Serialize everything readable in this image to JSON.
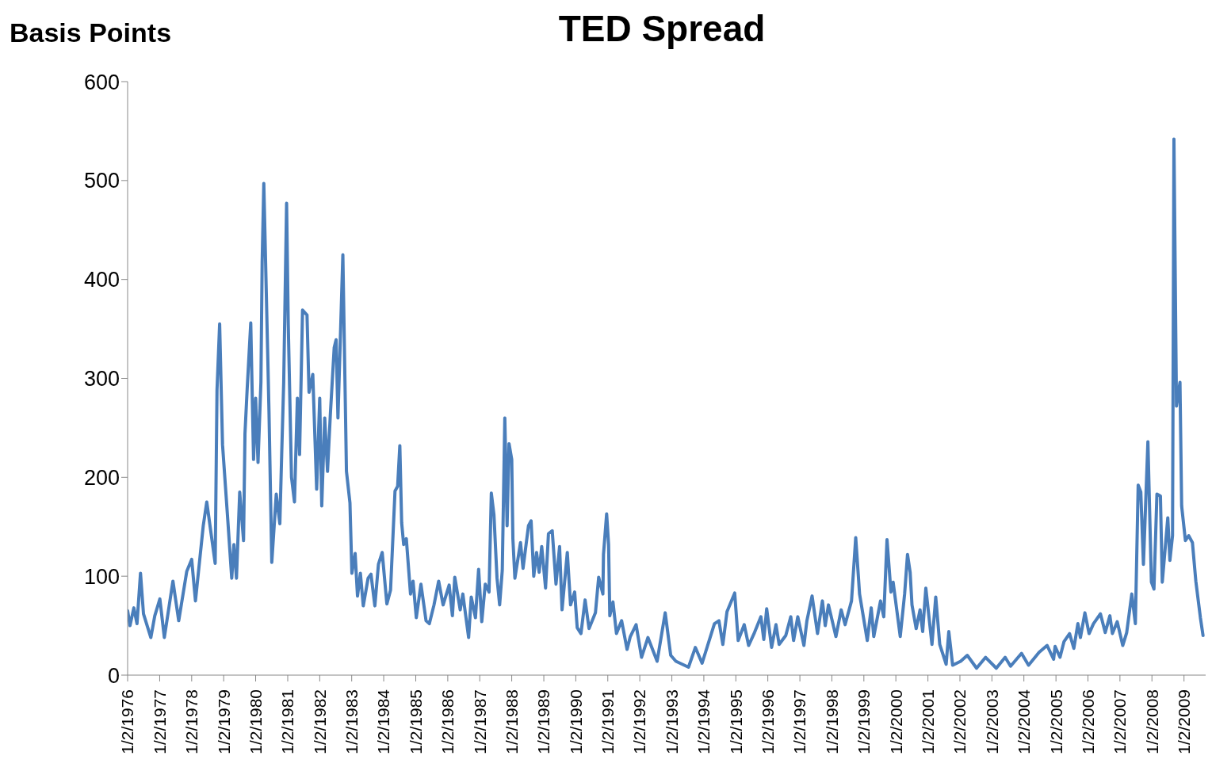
{
  "chart_data": {
    "type": "line",
    "title": "TED Spread",
    "ylabel": "Basis Points",
    "color": "#4a7ebb",
    "line_style": "solid",
    "x": [
      "1976-01-02",
      "1976-01-29",
      "1976-03-13",
      "1976-04-18",
      "1976-05-28",
      "1976-07-01",
      "1976-09-23",
      "1976-11-07",
      "1977-01-04",
      "1977-02-24",
      "1977-06-02",
      "1977-08-07",
      "1977-11-07",
      "1978-01-02",
      "1978-02-14",
      "1978-05-14",
      "1978-06-23",
      "1978-09-27",
      "1978-10-18",
      "1978-11-17",
      "1978-12-20",
      "1979-02-14",
      "1979-04-04",
      "1979-04-29",
      "1979-05-28",
      "1979-07-04",
      "1979-08-17",
      "1979-09-02",
      "1979-09-27",
      "1979-11-07",
      "1979-12-09",
      "1980-01-02",
      "1980-01-29",
      "1980-03-02",
      "1980-03-16",
      "1980-04-04",
      "1980-05-17",
      "1980-06-02",
      "1980-07-04",
      "1980-08-24",
      "1980-10-04",
      "1980-10-25",
      "1980-11-17",
      "1980-12-20",
      "1981-01-08",
      "1981-02-14",
      "1981-03-20",
      "1981-04-22",
      "1981-05-17",
      "1981-06-20",
      "1981-08-10",
      "1981-09-02",
      "1981-10-15",
      "1981-11-28",
      "1982-01-02",
      "1982-01-25",
      "1982-02-28",
      "1982-04-01",
      "1982-05-03",
      "1982-06-16",
      "1982-07-08",
      "1982-07-29",
      "1982-09-23",
      "1982-11-03",
      "1982-12-13",
      "1983-01-04",
      "1983-02-10",
      "1983-03-09",
      "1983-04-11",
      "1983-05-14",
      "1983-07-08",
      "1983-08-10",
      "1983-09-23",
      "1983-11-03",
      "1983-12-16",
      "1984-02-07",
      "1984-03-20",
      "1984-05-10",
      "1984-06-09",
      "1984-07-04",
      "1984-07-25",
      "1984-08-17",
      "1984-09-16",
      "1984-11-03",
      "1984-12-02",
      "1985-01-08",
      "1985-03-02",
      "1985-04-29",
      "1985-06-06",
      "1985-07-29",
      "1985-09-20",
      "1985-11-10",
      "1986-01-18",
      "1986-02-24",
      "1986-03-23",
      "1986-05-24",
      "1986-06-23",
      "1986-08-28",
      "1986-09-27",
      "1986-11-14",
      "1986-12-20",
      "1987-01-25",
      "1987-03-06",
      "1987-04-18",
      "1987-05-14",
      "1987-06-13",
      "1987-07-18",
      "1987-08-17",
      "1987-09-16",
      "1987-10-15",
      "1987-11-10",
      "1987-12-02",
      "1988-01-02",
      "1988-01-15",
      "1988-02-07",
      "1988-04-11",
      "1988-05-10",
      "1988-07-11",
      "1988-08-10",
      "1988-09-09",
      "1988-10-11",
      "1988-11-10",
      "1988-12-09",
      "1989-01-22",
      "1989-02-24",
      "1989-04-08",
      "1989-05-21",
      "1989-07-01",
      "1989-07-29",
      "1989-09-27",
      "1989-11-03",
      "1989-12-20",
      "1990-01-18",
      "1990-03-02",
      "1990-04-18",
      "1990-06-02",
      "1990-08-14",
      "1990-09-20",
      "1990-11-07",
      "1990-11-14",
      "1990-12-20",
      "1991-01-11",
      "1991-01-25",
      "1991-03-02",
      "1991-04-11",
      "1991-06-09",
      "1991-08-10",
      "1991-09-16",
      "1991-11-21",
      "1992-01-22",
      "1992-04-04",
      "1992-07-18",
      "1992-10-18",
      "1992-12-20",
      "1993-02-17",
      "1993-07-11",
      "1993-09-27",
      "1993-12-13",
      "1994-05-03",
      "1994-06-23",
      "1994-08-07",
      "1994-09-23",
      "1994-12-20",
      "1995-01-29",
      "1995-04-08",
      "1995-05-28",
      "1995-08-03",
      "1995-10-15",
      "1995-11-17",
      "1995-12-20",
      "1996-02-14",
      "1996-04-04",
      "1996-05-10",
      "1996-07-25",
      "1996-09-20",
      "1996-10-22",
      "1996-12-09",
      "1997-02-17",
      "1997-03-23",
      "1997-05-21",
      "1997-07-22",
      "1997-09-16",
      "1997-10-18",
      "1997-11-24",
      "1998-02-17",
      "1998-04-18",
      "1998-06-02",
      "1998-08-14",
      "1998-10-01",
      "1998-11-14",
      "1999-02-10",
      "1999-03-27",
      "1999-04-25",
      "1999-07-11",
      "1999-08-17",
      "1999-09-23",
      "1999-11-07",
      "1999-12-02",
      "2000-02-21",
      "2000-04-11",
      "2000-05-14",
      "2000-06-13",
      "2000-07-04",
      "2000-08-21",
      "2000-10-04",
      "2000-11-03",
      "2000-12-09",
      "2001-02-17",
      "2001-04-01",
      "2001-05-17",
      "2001-07-29",
      "2001-08-28",
      "2001-10-11",
      "2002-01-11",
      "2002-03-27",
      "2002-07-11",
      "2002-10-22",
      "2003-02-21",
      "2003-06-02",
      "2003-08-03",
      "2003-12-06",
      "2004-02-24",
      "2004-06-23",
      "2004-09-23",
      "2004-12-06",
      "2004-12-23",
      "2005-02-17",
      "2005-04-04",
      "2005-06-06",
      "2005-07-25",
      "2005-09-09",
      "2005-10-08",
      "2005-11-28",
      "2006-01-15",
      "2006-03-06",
      "2006-05-24",
      "2006-07-18",
      "2006-09-09",
      "2006-10-08",
      "2006-12-02",
      "2007-02-03",
      "2007-03-20",
      "2007-05-17",
      "2007-06-27",
      "2007-07-29",
      "2007-08-28",
      "2007-09-27",
      "2007-11-17",
      "2007-12-27",
      "2008-01-25",
      "2008-02-28",
      "2008-04-08",
      "2008-04-29",
      "2008-07-01",
      "2008-07-25",
      "2008-08-24",
      "2008-09-09",
      "2008-10-08",
      "2008-11-17",
      "2008-12-06",
      "2009-01-18",
      "2009-02-24",
      "2009-04-08",
      "2009-05-17",
      "2009-07-08",
      "2009-08-07"
    ],
    "values": [
      65,
      50,
      68,
      52,
      103,
      62,
      38,
      60,
      77,
      38,
      95,
      55,
      105,
      117,
      75,
      151,
      175,
      113,
      288,
      355,
      233,
      162,
      98,
      132,
      98,
      185,
      136,
      244,
      289,
      356,
      218,
      280,
      215,
      296,
      417,
      497,
      330,
      267,
      114,
      183,
      153,
      223,
      296,
      477,
      354,
      200,
      175,
      280,
      223,
      369,
      364,
      286,
      304,
      188,
      280,
      171,
      260,
      206,
      263,
      331,
      339,
      260,
      425,
      206,
      174,
      103,
      123,
      80,
      103,
      70,
      98,
      102,
      70,
      112,
      124,
      72,
      86,
      186,
      191,
      232,
      154,
      132,
      138,
      82,
      95,
      58,
      92,
      55,
      52,
      71,
      95,
      71,
      91,
      60,
      99,
      66,
      82,
      38,
      79,
      58,
      107,
      54,
      92,
      84,
      184,
      162,
      98,
      71,
      106,
      260,
      151,
      234,
      218,
      138,
      98,
      134,
      108,
      151,
      156,
      100,
      124,
      104,
      130,
      88,
      143,
      146,
      92,
      130,
      66,
      124,
      71,
      84,
      48,
      42,
      76,
      47,
      63,
      99,
      82,
      122,
      163,
      132,
      60,
      74,
      42,
      55,
      26,
      39,
      51,
      18,
      38,
      14,
      63,
      20,
      14,
      8,
      28,
      12,
      52,
      55,
      31,
      64,
      83,
      35,
      51,
      30,
      43,
      59,
      36,
      67,
      28,
      51,
      31,
      40,
      59,
      35,
      59,
      30,
      55,
      80,
      42,
      75,
      50,
      71,
      39,
      66,
      51,
      75,
      139,
      82,
      35,
      68,
      39,
      75,
      59,
      137,
      84,
      94,
      39,
      82,
      122,
      104,
      71,
      47,
      66,
      44,
      88,
      31,
      79,
      31,
      11,
      44,
      10,
      14,
      20,
      7,
      18,
      7,
      18,
      9,
      22,
      10,
      23,
      30,
      16,
      29,
      18,
      34,
      42,
      27,
      52,
      38,
      63,
      42,
      52,
      62,
      43,
      60,
      42,
      54,
      30,
      43,
      82,
      52,
      192,
      185,
      112,
      236,
      94,
      87,
      183,
      181,
      94,
      159,
      116,
      141,
      542,
      272,
      296,
      171,
      136,
      141,
      134,
      95,
      58,
      40
    ],
    "xlim": [
      "1976-01-02",
      "2009-09-06"
    ],
    "xticks": [
      {
        "value": "1976-01-02",
        "label": "1/2/1976"
      },
      {
        "value": "1977-01-02",
        "label": "1/2/1977"
      },
      {
        "value": "1978-01-02",
        "label": "1/2/1978"
      },
      {
        "value": "1979-01-02",
        "label": "1/2/1979"
      },
      {
        "value": "1980-01-02",
        "label": "1/2/1980"
      },
      {
        "value": "1981-01-02",
        "label": "1/2/1981"
      },
      {
        "value": "1982-01-02",
        "label": "1/2/1982"
      },
      {
        "value": "1983-01-02",
        "label": "1/2/1983"
      },
      {
        "value": "1984-01-02",
        "label": "1/2/1984"
      },
      {
        "value": "1985-01-02",
        "label": "1/2/1985"
      },
      {
        "value": "1986-01-02",
        "label": "1/2/1986"
      },
      {
        "value": "1987-01-02",
        "label": "1/2/1987"
      },
      {
        "value": "1988-01-02",
        "label": "1/2/1988"
      },
      {
        "value": "1989-01-02",
        "label": "1/2/1989"
      },
      {
        "value": "1990-01-02",
        "label": "1/2/1990"
      },
      {
        "value": "1991-01-02",
        "label": "1/2/1991"
      },
      {
        "value": "1992-01-02",
        "label": "1/2/1992"
      },
      {
        "value": "1993-01-02",
        "label": "1/2/1993"
      },
      {
        "value": "1994-01-02",
        "label": "1/2/1994"
      },
      {
        "value": "1995-01-02",
        "label": "1/2/1995"
      },
      {
        "value": "1996-01-02",
        "label": "1/2/1996"
      },
      {
        "value": "1997-01-02",
        "label": "1/2/1997"
      },
      {
        "value": "1998-01-02",
        "label": "1/2/1998"
      },
      {
        "value": "1999-01-02",
        "label": "1/2/1999"
      },
      {
        "value": "2000-01-02",
        "label": "1/2/2000"
      },
      {
        "value": "2001-01-02",
        "label": "1/2/2001"
      },
      {
        "value": "2002-01-02",
        "label": "1/2/2002"
      },
      {
        "value": "2003-01-02",
        "label": "1/2/2003"
      },
      {
        "value": "2004-01-02",
        "label": "1/2/2004"
      },
      {
        "value": "2005-01-02",
        "label": "1/2/2005"
      },
      {
        "value": "2006-01-02",
        "label": "1/2/2006"
      },
      {
        "value": "2007-01-02",
        "label": "1/2/2007"
      },
      {
        "value": "2008-01-02",
        "label": "1/2/2008"
      },
      {
        "value": "2009-01-02",
        "label": "1/2/2009"
      }
    ],
    "ylim": [
      0,
      600
    ],
    "yticks": [
      0,
      100,
      200,
      300,
      400,
      500,
      600
    ]
  }
}
